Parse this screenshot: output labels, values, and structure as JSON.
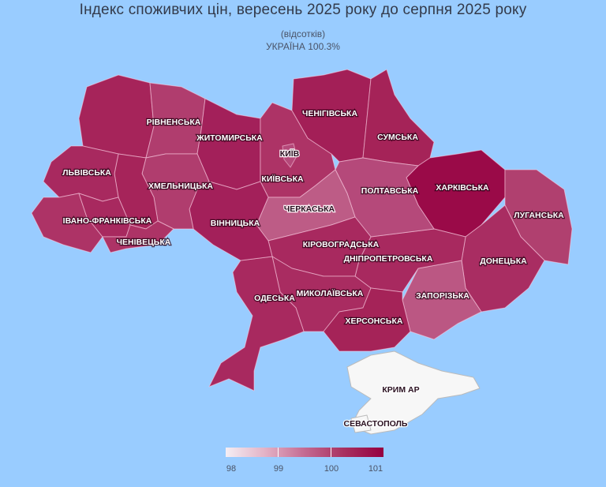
{
  "title": "Індекс споживчих цін, вересень 2025 року до серпня 2025 року",
  "unit": "(відсотків)",
  "national": "УКРАЇНА 100.3%",
  "legend": {
    "ticks": [
      "98",
      "99",
      "100",
      "101"
    ],
    "range": [
      98,
      101
    ],
    "colors": [
      "#f4eef4",
      "#950040"
    ]
  },
  "colors": {
    "background": "#99ccff",
    "occupied": "#f7f7f7"
  },
  "regions": [
    {
      "id": "volyn",
      "label": "",
      "color": "#a6245a"
    },
    {
      "id": "rivne",
      "label": "РІВНЕНСЬКА",
      "color": "#b03d6e"
    },
    {
      "id": "zhytomyr",
      "label": "ЖИТОМИРСЬКА",
      "color": "#a3205a"
    },
    {
      "id": "kyivska",
      "label": "КИЇВСЬКА",
      "color": "#ad3366"
    },
    {
      "id": "kyiv",
      "label": "КИЇВ",
      "color": "#b5497a"
    },
    {
      "id": "chernihiv",
      "label": "ЧЕНІГІВСЬКА",
      "color": "#a31f57"
    },
    {
      "id": "sumy",
      "label": "СУМСЬКА",
      "color": "#a52358"
    },
    {
      "id": "kharkiv",
      "label": "ХАРКІВСЬКА",
      "color": "#9a0a48"
    },
    {
      "id": "luhansk",
      "label": "ЛУГАНСЬКА",
      "color": "#b0406f"
    },
    {
      "id": "donetsk",
      "label": "ДОНЕЦЬКА",
      "color": "#a92d62"
    },
    {
      "id": "zaporizhzhia",
      "label": "ЗАПОРІЗЬКА",
      "color": "#bb5783"
    },
    {
      "id": "dnipro",
      "label": "ДНІПРОПЕТРОВСЬКА",
      "color": "#a8295f"
    },
    {
      "id": "poltava",
      "label": "ПОЛТАВСЬКА",
      "color": "#b5497a"
    },
    {
      "id": "cherkasy",
      "label": "ЧЕРКАСЬКА",
      "color": "#bd5c86"
    },
    {
      "id": "kirovohrad",
      "label": "КІРОВОГРАДСЬКА",
      "color": "#a8295f"
    },
    {
      "id": "mykolaiv",
      "label": "МИКОЛАЇВСЬКА",
      "color": "#a92c61"
    },
    {
      "id": "kherson",
      "label": "ХЕРСОНСЬКА",
      "color": "#a52358"
    },
    {
      "id": "odesa",
      "label": "ОДЕСЬКА",
      "color": "#a8295f"
    },
    {
      "id": "vinnytsia",
      "label": "ВІННИЦЬКА",
      "color": "#a3205a"
    },
    {
      "id": "khmelnytskyi",
      "label": "ХМЕЛЬНИЦЬКА",
      "color": "#b03d6e"
    },
    {
      "id": "ternopil",
      "label": "",
      "color": "#a6245a"
    },
    {
      "id": "lviv",
      "label": "ЛЬВІВСЬКА",
      "color": "#a8295f"
    },
    {
      "id": "zakarpattia",
      "label": "",
      "color": "#ad3366"
    },
    {
      "id": "ivano-frankivsk",
      "label": "ІВАНО-ФРАНКІВСЬКА",
      "color": "#a8295f"
    },
    {
      "id": "chernivtsi",
      "label": "ЧЕНІВЕЦЬКА",
      "color": "#ad3366"
    },
    {
      "id": "crimea",
      "label": "КРИМ АР",
      "color": "#f7f7f7"
    },
    {
      "id": "sevastopol",
      "label": "СЕВАСТОПОЛЬ",
      "color": "#f7f7f7"
    }
  ]
}
